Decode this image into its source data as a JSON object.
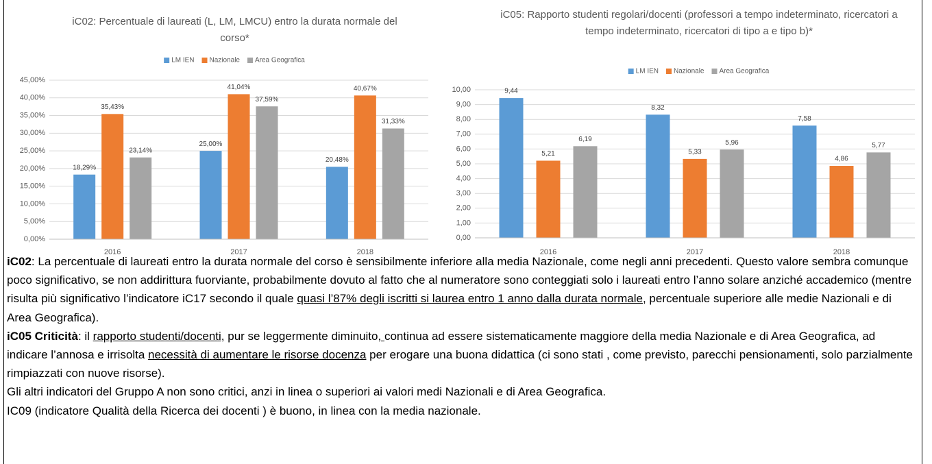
{
  "chart_data": [
    {
      "type": "bar",
      "title": "iC02: Percentuale di laureati (L, LM, LMCU) entro la durata normale del corso*",
      "categories": [
        "2016",
        "2017",
        "2018"
      ],
      "series": [
        {
          "name": "LM IEN",
          "color": "#5b9bd5",
          "values": [
            18.29,
            25.0,
            20.48
          ],
          "value_labels": [
            "18,29%",
            "25,00%",
            "20,48%"
          ]
        },
        {
          "name": "Nazionale",
          "color": "#ed7d31",
          "values": [
            35.43,
            41.04,
            40.67
          ],
          "value_labels": [
            "35,43%",
            "41,04%",
            "40,67%"
          ]
        },
        {
          "name": "Area Geografica",
          "color": "#a5a5a5",
          "values": [
            23.14,
            37.59,
            31.33
          ],
          "value_labels": [
            "23,14%",
            "37,59%",
            "31,33%"
          ]
        }
      ],
      "ylim": [
        0,
        45
      ],
      "yticks": [
        {
          "value": 0,
          "label": "0,00%"
        },
        {
          "value": 5,
          "label": "5,00%"
        },
        {
          "value": 10,
          "label": "10,00%"
        },
        {
          "value": 15,
          "label": "15,00%"
        },
        {
          "value": 20,
          "label": "20,00%"
        },
        {
          "value": 25,
          "label": "25,00%"
        },
        {
          "value": 30,
          "label": "30,00%"
        },
        {
          "value": 35,
          "label": "35,00%"
        },
        {
          "value": 40,
          "label": "40,00%"
        },
        {
          "value": 45,
          "label": "45,00%"
        }
      ],
      "grid": true,
      "legend": "top"
    },
    {
      "type": "bar",
      "title": "iC05: Rapporto studenti regolari/docenti (professori a tempo indeterminato, ricercatori a tempo indeterminato, ricercatori di tipo a e tipo b)*",
      "categories": [
        "2016",
        "2017",
        "2018"
      ],
      "series": [
        {
          "name": "LM IEN",
          "color": "#5b9bd5",
          "values": [
            9.44,
            8.32,
            7.58
          ],
          "value_labels": [
            "9,44",
            "8,32",
            "7,58"
          ]
        },
        {
          "name": "Nazionale",
          "color": "#ed7d31",
          "values": [
            5.21,
            5.33,
            4.86
          ],
          "value_labels": [
            "5,21",
            "5,33",
            "4,86"
          ]
        },
        {
          "name": "Area Geografica",
          "color": "#a5a5a5",
          "values": [
            6.19,
            5.96,
            5.77
          ],
          "value_labels": [
            "6,19",
            "5,96",
            "5,77"
          ]
        }
      ],
      "ylim": [
        0,
        10
      ],
      "yticks": [
        {
          "value": 0,
          "label": "0,00"
        },
        {
          "value": 1,
          "label": "1,00"
        },
        {
          "value": 2,
          "label": "2,00"
        },
        {
          "value": 3,
          "label": "3,00"
        },
        {
          "value": 4,
          "label": "4,00"
        },
        {
          "value": 5,
          "label": "5,00"
        },
        {
          "value": 6,
          "label": "6,00"
        },
        {
          "value": 7,
          "label": "7,00"
        },
        {
          "value": 8,
          "label": "8,00"
        },
        {
          "value": 9,
          "label": "9,00"
        },
        {
          "value": 10,
          "label": "10,00"
        }
      ],
      "grid": true,
      "legend": "top"
    }
  ],
  "text": {
    "p1": [
      "iC02",
      ": La percentuale di laureati entro la durata normale del corso è sensibilmente inferiore alla media Nazionale, come negli anni precedenti. Questo valore sembra comunque poco significativo, se non addirittura fuorviante, probabilmente dovuto al fatto che al numeratore sono conteggiati solo i laureati entro l’anno solare anziché accademico (mentre risulta più significativo l’indicatore iC17 secondo il quale ",
      "quasi l’87% degli iscritti si laurea entro 1 anno dalla durata normale",
      ", percentuale superiore alle medie Nazionali e di Area Geografica)."
    ],
    "p2": [
      "iC05 Criticità",
      ": il ",
      "rapporto studenti/docenti,",
      " pur se leggermente diminuito",
      ", ",
      "continua ad essere sistematicamente maggiore della media Nazionale e di Area Geografica, ad indicare  l’annosa e irrisolta  ",
      "necessità di aumentare le risorse docenza",
      " per erogare una buona didattica (ci sono stati , come previsto, parecchi pensionamenti, solo parzialmente rimpiazzati con nuove risorse)."
    ],
    "p3": "Gli altri indicatori del Gruppo A non sono critici, anzi in linea o superiori ai valori medi Nazionali e di Area Geografica.",
    "p4": "IC09 (indicatore Qualità della Ricerca dei docenti ) è buono, in linea con la media nazionale."
  }
}
